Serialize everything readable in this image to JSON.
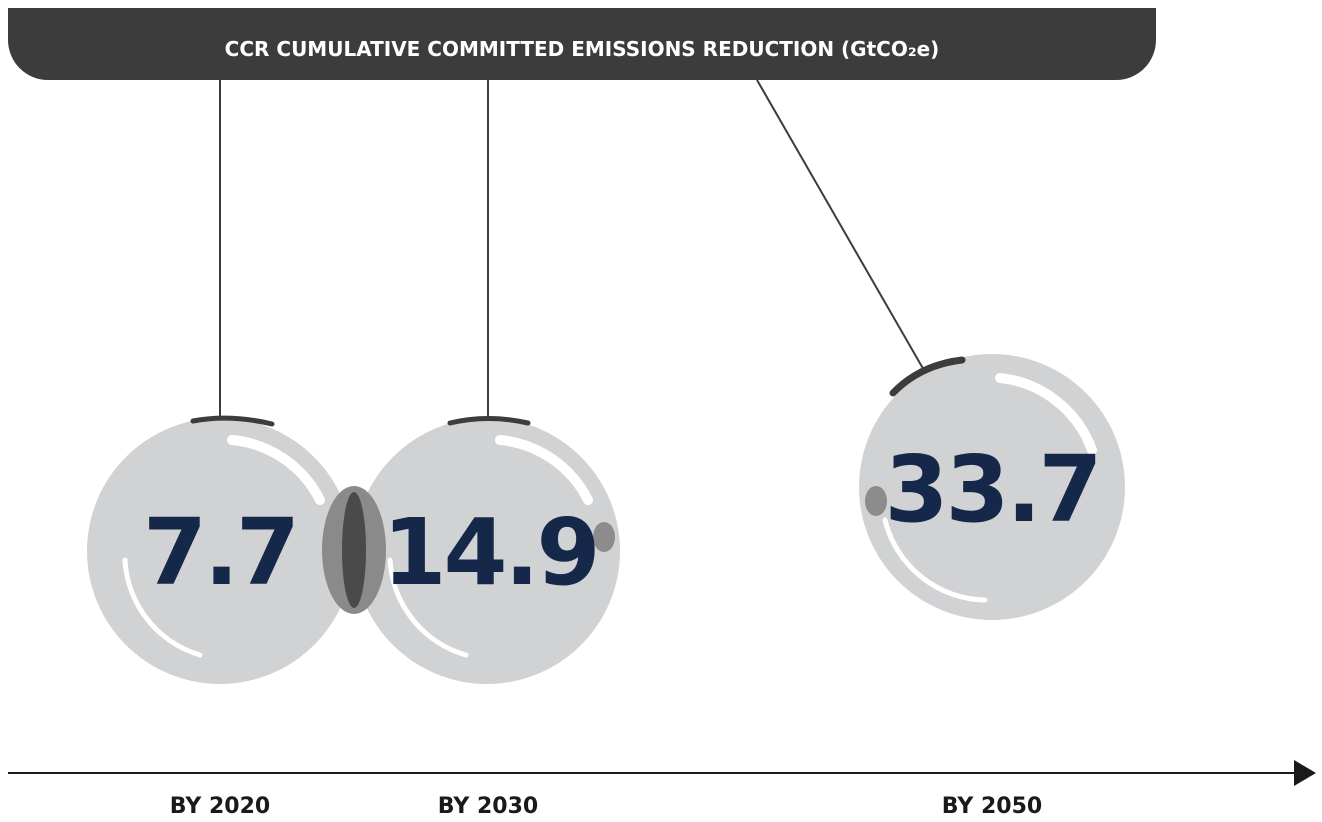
{
  "header": {
    "title": "CCR CUMULATIVE COMMITTED EMISSIONS REDUCTION (GtCO₂e)"
  },
  "items": [
    {
      "label": "BY 2020",
      "value": 7.7
    },
    {
      "label": "BY 2030",
      "value": 14.9
    },
    {
      "label": "BY 2050",
      "value": 33.7
    }
  ]
}
